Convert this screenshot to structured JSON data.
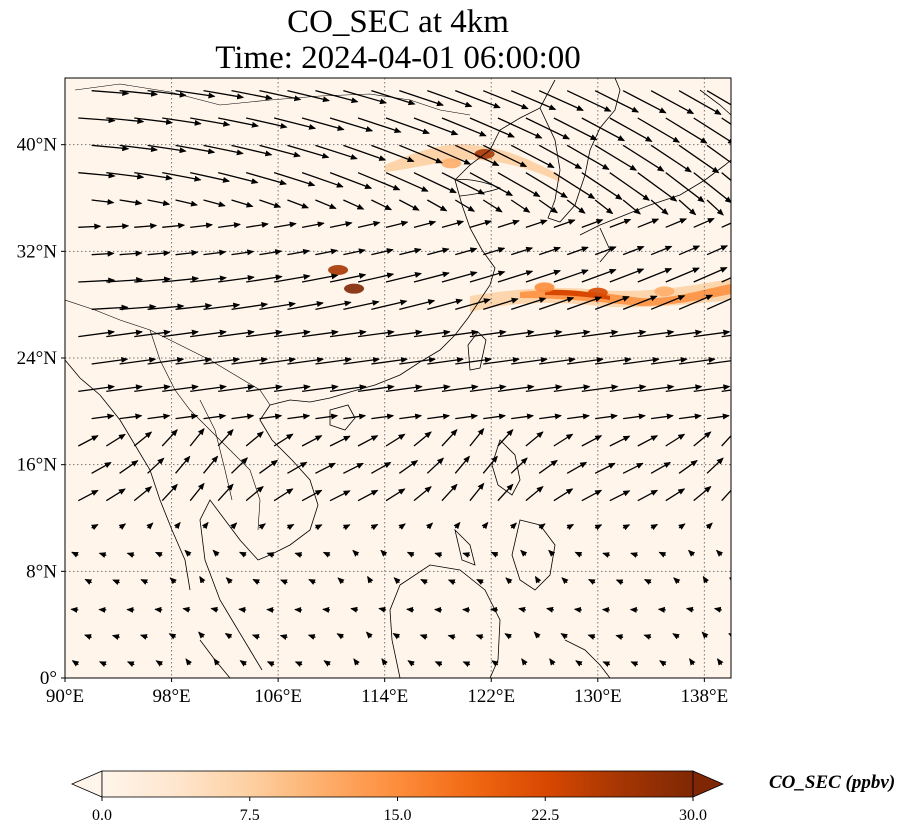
{
  "title_line1": "CO_SEC at 4km",
  "title_line2": "Time: 2024-04-01 06:00:00",
  "map": {
    "projection": "PlateCarree",
    "lon_range": [
      90,
      140
    ],
    "lat_range": [
      0,
      45
    ],
    "lon_ticks": [
      {
        "value": 90,
        "label": "90°E"
      },
      {
        "value": 98,
        "label": "98°E"
      },
      {
        "value": 106,
        "label": "106°E"
      },
      {
        "value": 114,
        "label": "114°E"
      },
      {
        "value": 122,
        "label": "122°E"
      },
      {
        "value": 130,
        "label": "130°E"
      },
      {
        "value": 138,
        "label": "138°E"
      }
    ],
    "lat_ticks": [
      {
        "value": 0,
        "label": "0°"
      },
      {
        "value": 8,
        "label": "8°N"
      },
      {
        "value": 16,
        "label": "16°N"
      },
      {
        "value": 24,
        "label": "24°N"
      },
      {
        "value": 32,
        "label": "32°N"
      },
      {
        "value": 40,
        "label": "40°N"
      }
    ],
    "gridlines": "dotted",
    "background_color": "#fff5eb",
    "coastlines": true,
    "wind_vectors": true
  },
  "colorbar": {
    "label": "CO_SEC (ppbv)",
    "min": 0.0,
    "max": 30.0,
    "ticks": [
      "0.0",
      "7.5",
      "15.0",
      "22.5",
      "30.0"
    ],
    "colormap": "OrRd",
    "extend": "both",
    "colors": [
      "#fff5eb",
      "#fee6ce",
      "#fdd0a2",
      "#fdae6b",
      "#fd8d3c",
      "#f16913",
      "#d94801",
      "#a63603",
      "#7f2704"
    ]
  },
  "plumes": [
    {
      "lon": 121.5,
      "lat": 39.3,
      "value": 27
    },
    {
      "lon": 119.0,
      "lat": 38.6,
      "value": 12
    },
    {
      "lon": 110.5,
      "lat": 30.6,
      "value": 28
    },
    {
      "lon": 111.7,
      "lat": 29.2,
      "value": 29
    },
    {
      "lon": 130.0,
      "lat": 28.9,
      "value": 24
    },
    {
      "lon": 126.0,
      "lat": 29.3,
      "value": 14
    },
    {
      "lon": 135.0,
      "lat": 29.0,
      "value": 12
    }
  ]
}
